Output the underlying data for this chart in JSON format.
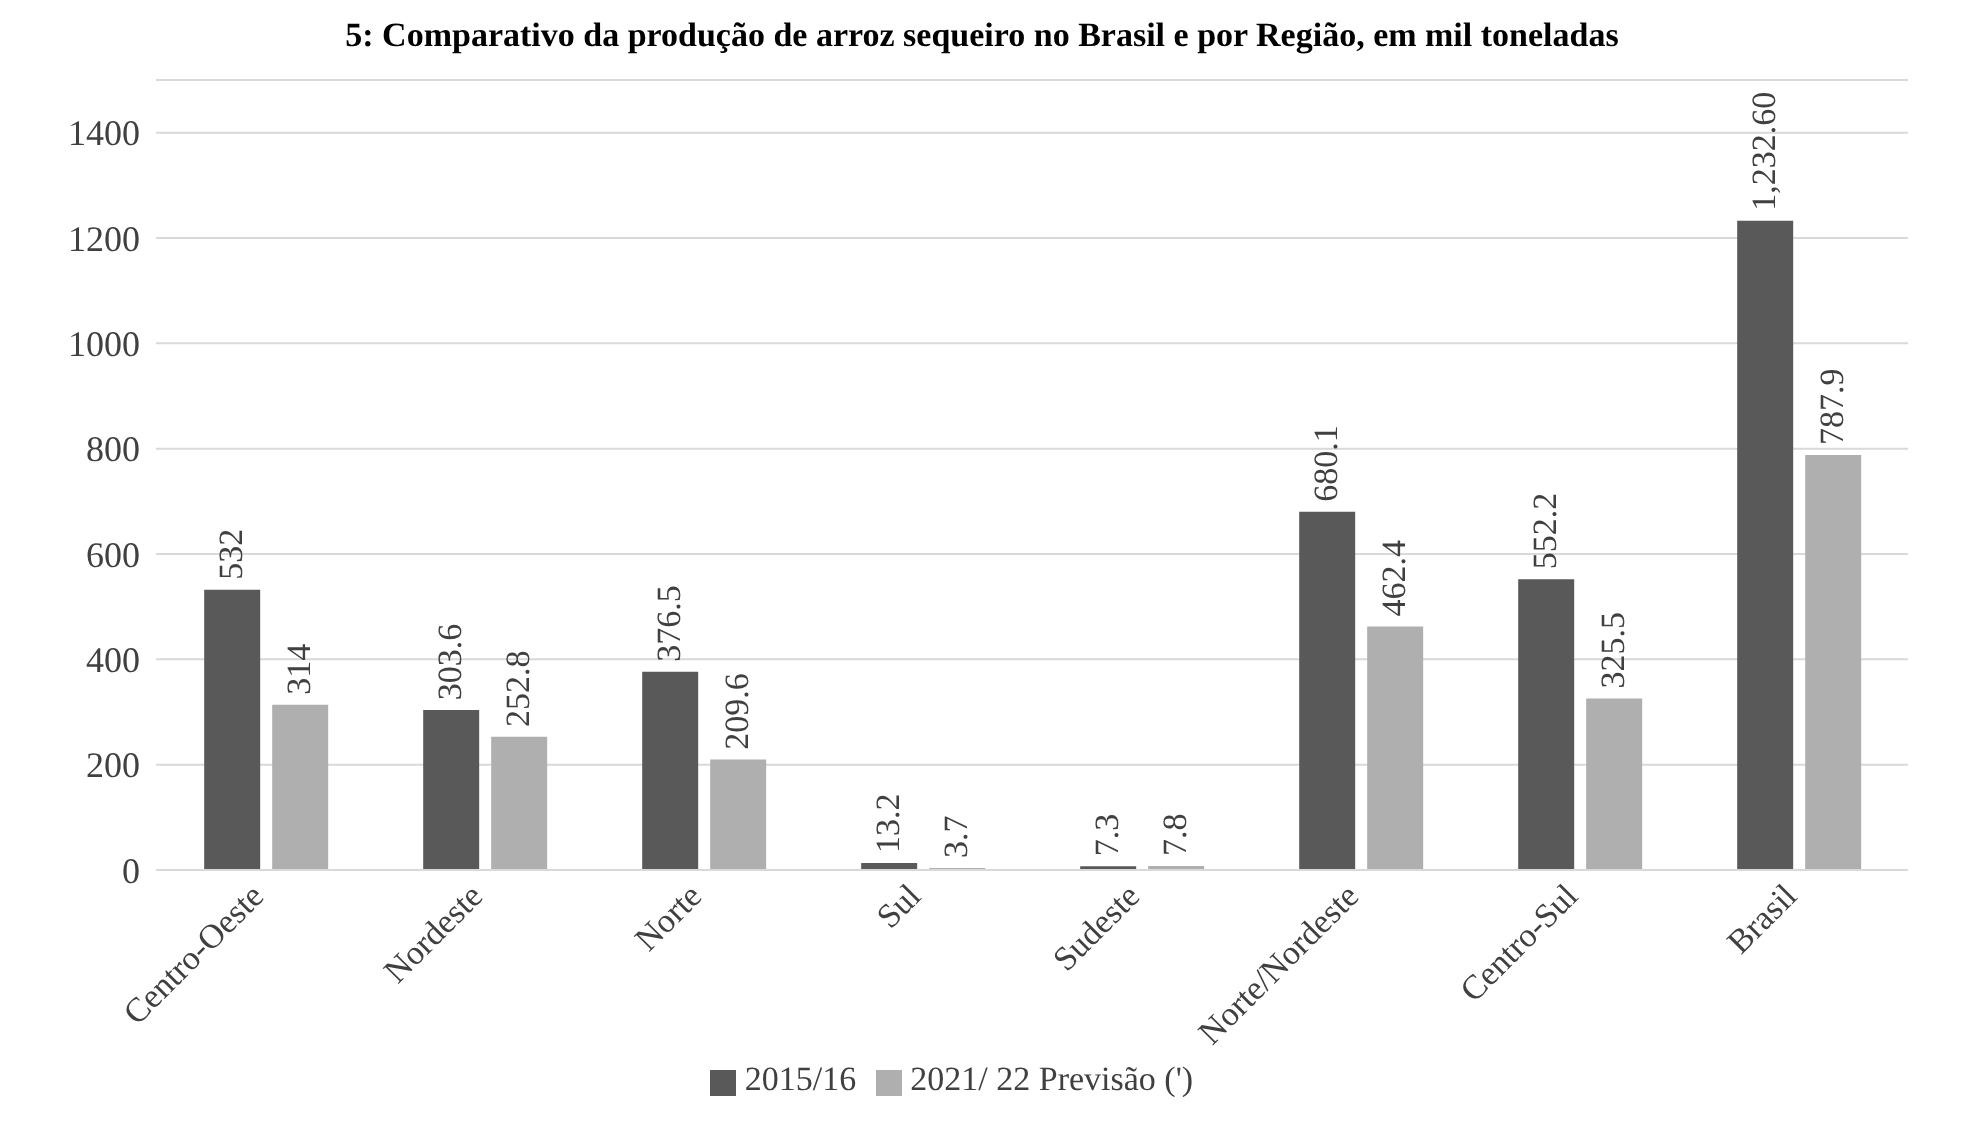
{
  "chart_data": {
    "type": "bar",
    "title": "5: Comparativo da produção de arroz sequeiro no Brasil e por Região, em mil toneladas",
    "categories": [
      "Centro-Oeste",
      "Nordeste",
      "Norte",
      "Sul",
      "Sudeste",
      "Norte/Nordeste",
      "Centro-Sul",
      "Brasil"
    ],
    "series": [
      {
        "name": "2015/16",
        "color": "#595959",
        "values": [
          532,
          303.6,
          376.5,
          13.2,
          7.3,
          680.1,
          552.2,
          1232.6
        ],
        "value_labels": [
          "532",
          "303.6",
          "376.5",
          "13.2",
          "7.3",
          "680.1",
          "552.2",
          "1,232.60"
        ]
      },
      {
        "name": "2021/ 22 Previsão (')",
        "color": "#afafaf",
        "values": [
          314,
          252.8,
          209.6,
          3.7,
          7.8,
          462.4,
          325.5,
          787.9
        ],
        "value_labels": [
          "314",
          "252.8",
          "209.6",
          "3.7",
          "7.8",
          "462.4",
          "325.5",
          "787.9"
        ]
      }
    ],
    "ylim": [
      0,
      1500
    ],
    "yticks": [
      0,
      200,
      400,
      600,
      800,
      1000,
      1200,
      1400
    ],
    "grid": "y",
    "legend": "bottom"
  }
}
